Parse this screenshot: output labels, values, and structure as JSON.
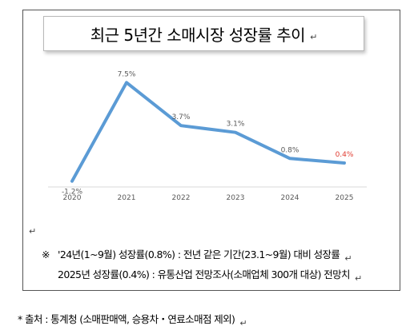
{
  "title": "최근 5년간 소매시장 성장률 추이",
  "return_mark": "↵",
  "chart_data": {
    "type": "line",
    "title": "최근 5년간 소매시장 성장률 추이",
    "xlabel": "",
    "ylabel": "",
    "categories": [
      "2020",
      "2021",
      "2022",
      "2023",
      "2024",
      "2025"
    ],
    "series": [
      {
        "values": [
          -1.2,
          7.5,
          3.7,
          3.1,
          0.8,
          0.4
        ]
      }
    ],
    "data_labels": [
      "-1.2%",
      "7.5%",
      "3.7%",
      "3.1%",
      "0.8%",
      "0.4%"
    ],
    "highlight_label_index": 5,
    "ylim": [
      -2,
      9
    ],
    "grid": false,
    "legend": "none",
    "colors": {
      "line": "#5b9bd5",
      "highlight": "#e03c31",
      "label": "#595959"
    }
  },
  "notes": {
    "symbol": "※",
    "line1": "'24년(1~9월) 성장률(0.8%) : 전년 같은 기간(23.1~9월) 대비 성장률",
    "line2": "2025년 성장률(0.4%) : 유통산업 전망조사(소매업체 300개 대상) 전망치"
  },
  "source": "* 출처 : 통계청 (소매판매액, 승용차・연료소매점 제외)"
}
